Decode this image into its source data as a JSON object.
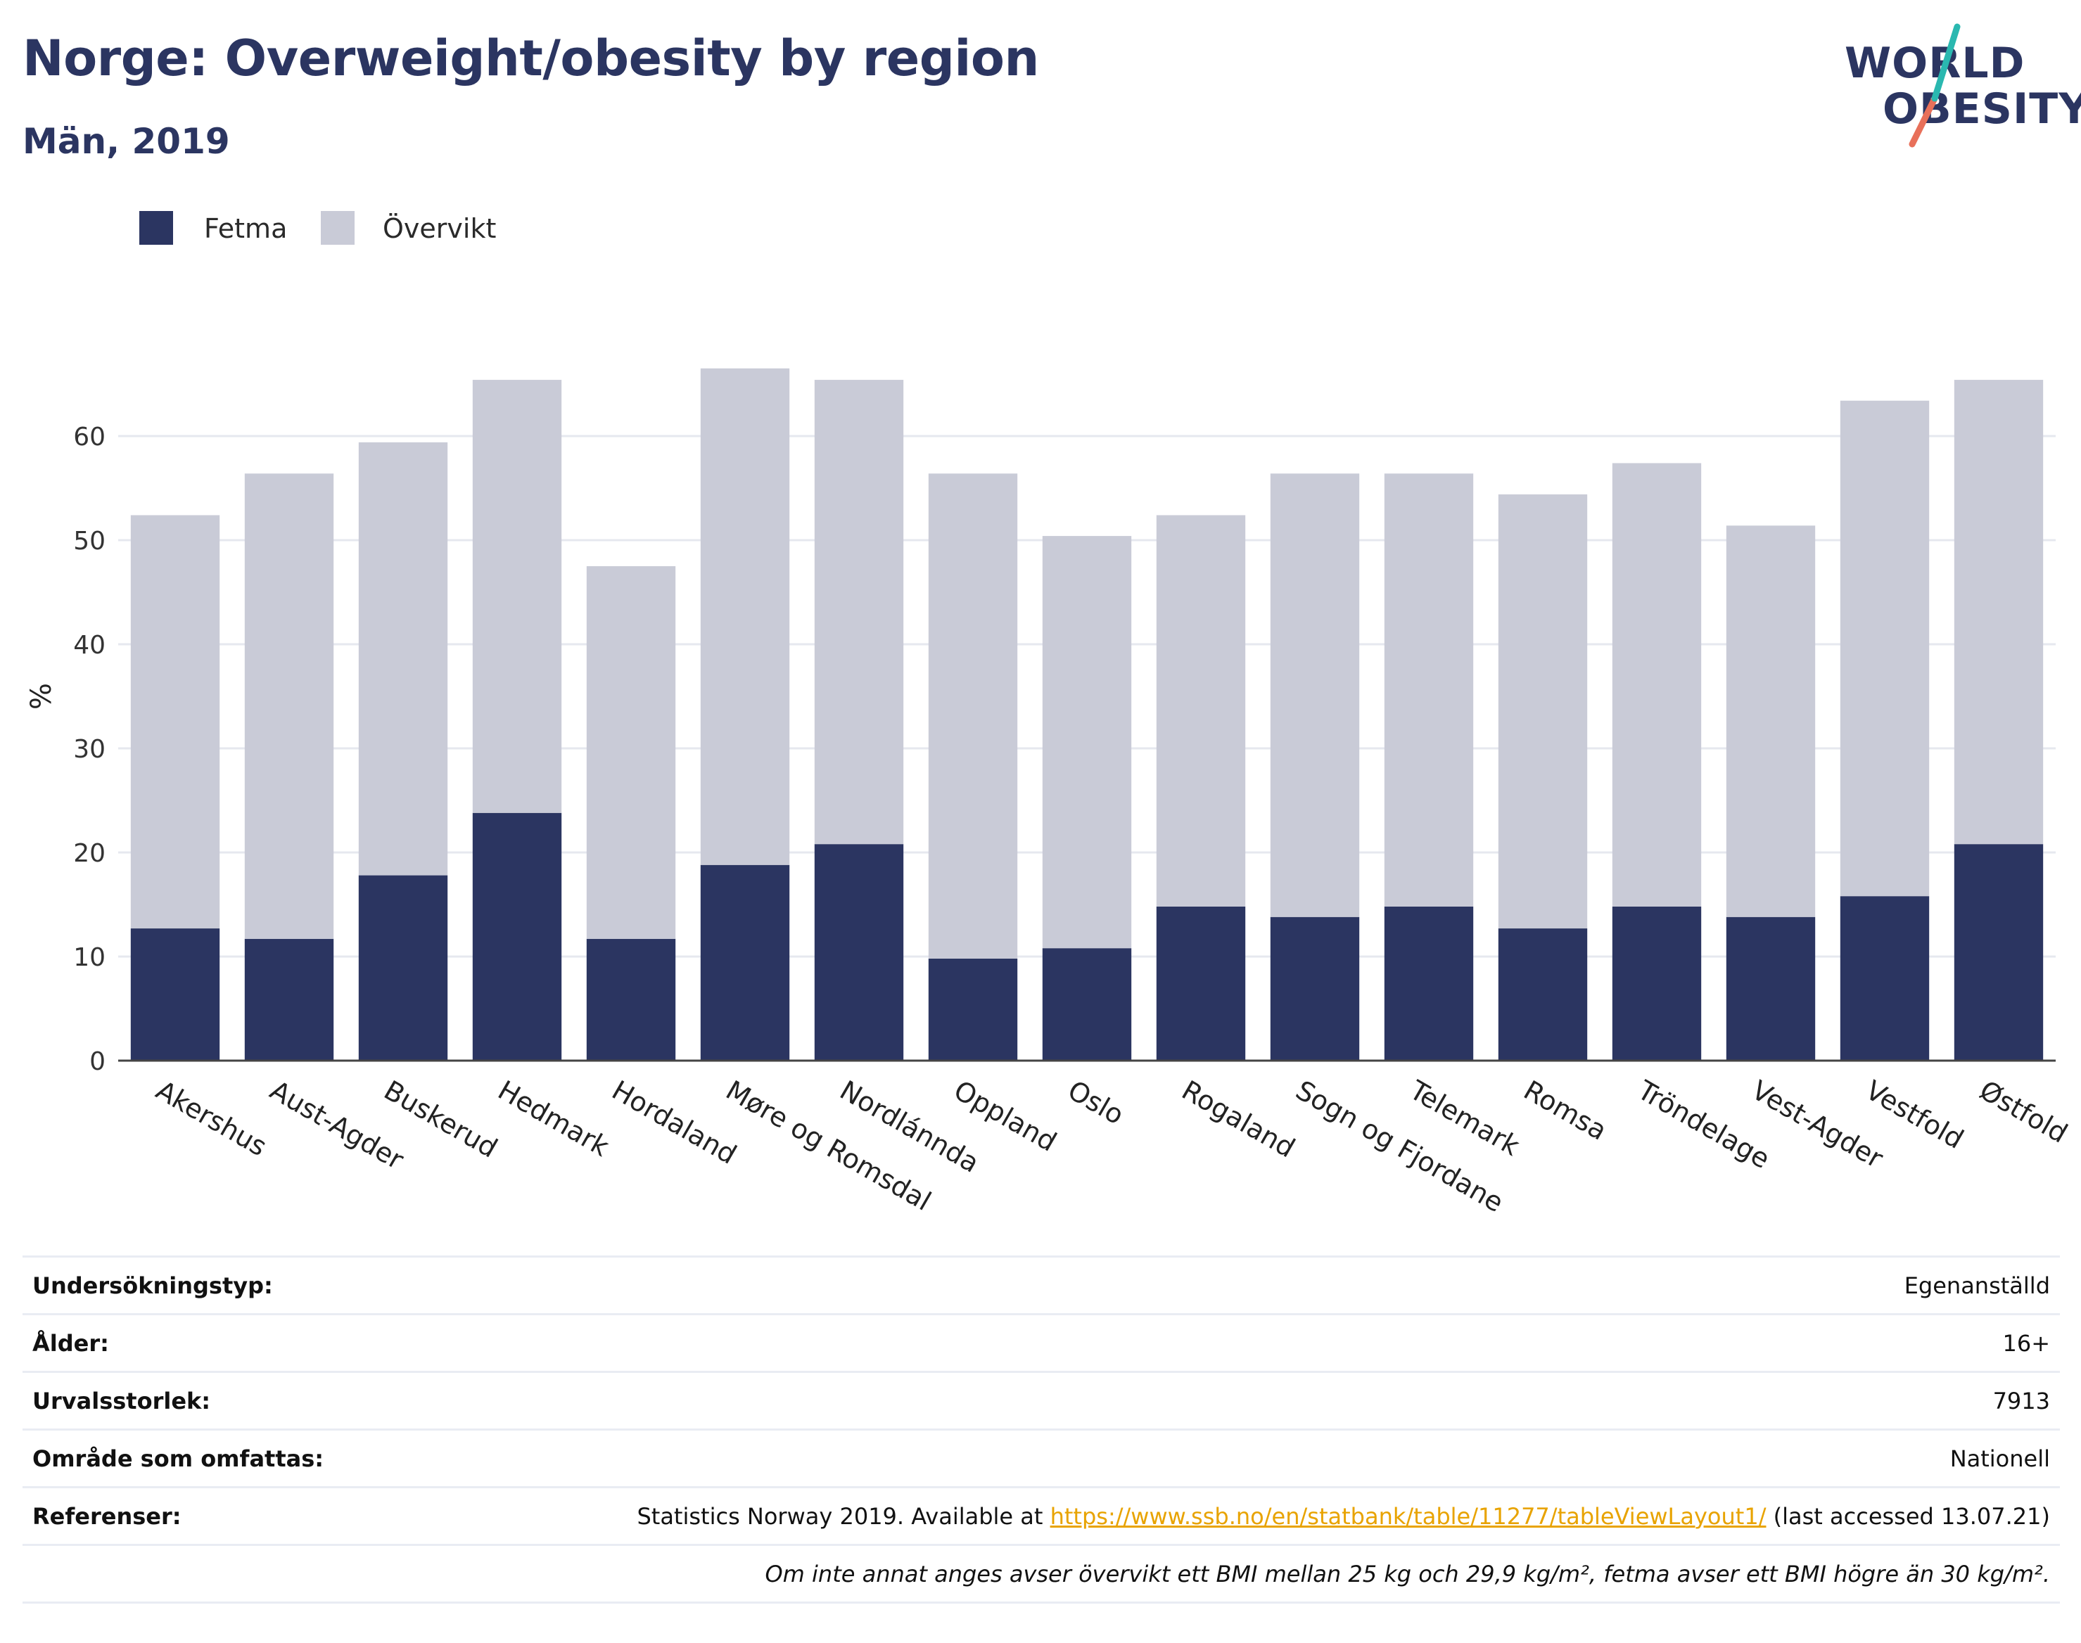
{
  "header": {
    "title": "Norge: Overweight/obesity by region",
    "subtitle": "Män, 2019"
  },
  "logo": {
    "line1": "WORLD",
    "line2": "OBESITY",
    "colors": {
      "text": "#2b3561",
      "slash_teal": "#2ab8b0",
      "slash_coral": "#e8705a"
    }
  },
  "legend": [
    {
      "label": "Fetma",
      "color": "#2b3561"
    },
    {
      "label": "Övervikt",
      "color": "#c9cbd7"
    }
  ],
  "chart_data": {
    "type": "bar",
    "stacked": true,
    "title": "",
    "xlabel": "",
    "ylabel": "%",
    "ylim": [
      0,
      70
    ],
    "yticks": [
      0,
      10,
      20,
      30,
      40,
      50,
      60
    ],
    "grid": true,
    "legend_position": "top-left",
    "categories": [
      "Akershus",
      "Aust-Agder",
      "Buskerud",
      "Hedmark",
      "Hordaland",
      "Møre og Romsdal",
      "Nordlánnda",
      "Oppland",
      "Oslo",
      "Rogaland",
      "Sogn og Fjordane",
      "Telemark",
      "Romsa",
      "Tröndelage",
      "Vest-Agder",
      "Vestfold",
      "Østfold"
    ],
    "series": [
      {
        "name": "Fetma",
        "color": "#2b3561",
        "values": [
          12.7,
          11.7,
          17.8,
          23.8,
          11.7,
          18.8,
          20.8,
          9.8,
          10.8,
          14.8,
          13.8,
          14.8,
          12.7,
          14.8,
          13.8,
          15.8,
          20.8
        ]
      },
      {
        "name": "Övervikt",
        "color": "#c9cbd7",
        "values": [
          39.7,
          44.7,
          41.6,
          41.6,
          35.8,
          47.7,
          44.6,
          46.6,
          39.6,
          37.6,
          42.6,
          41.6,
          41.7,
          42.6,
          37.6,
          47.6,
          44.6
        ]
      }
    ]
  },
  "info": {
    "rows": [
      {
        "label": "Undersökningstyp:",
        "value": "Egenanställd"
      },
      {
        "label": "Ålder:",
        "value": "16+"
      },
      {
        "label": "Urvalsstorlek:",
        "value": "7913"
      },
      {
        "label": "Område som omfattas:",
        "value": "Nationell"
      }
    ],
    "references": {
      "label": "Referenser:",
      "prefix": "Statistics Norway 2019. Available at ",
      "link": "https://www.ssb.no/en/statbank/table/11277/tableViewLayout1/",
      "suffix": " (last accessed 13.07.21)"
    },
    "note": "Om inte annat anges avser övervikt ett BMI mellan 25 kg och 29,9 kg/m², fetma avser ett BMI högre än 30 kg/m²."
  }
}
